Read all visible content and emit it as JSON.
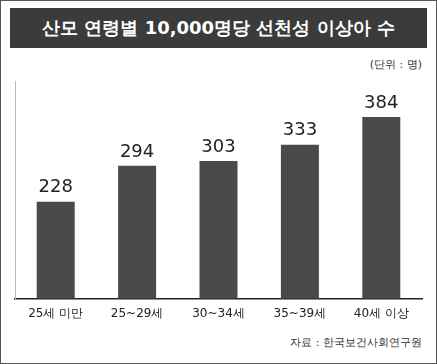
{
  "chart_data": {
    "type": "bar",
    "title": "산모 연령별 10,000명당 선천성 이상아 수",
    "unit_label": "(단위 : 명)",
    "source": "자료 : 한국보건사회연구원",
    "categories": [
      "25세 미만",
      "25~29세",
      "30~34세",
      "35~39세",
      "40세 이상"
    ],
    "values": [
      228,
      294,
      303,
      333,
      384
    ],
    "color": "#4a4a4a",
    "ylim": [
      50,
      450
    ],
    "grid": false,
    "data_labels": true,
    "tick_labels": "x"
  }
}
